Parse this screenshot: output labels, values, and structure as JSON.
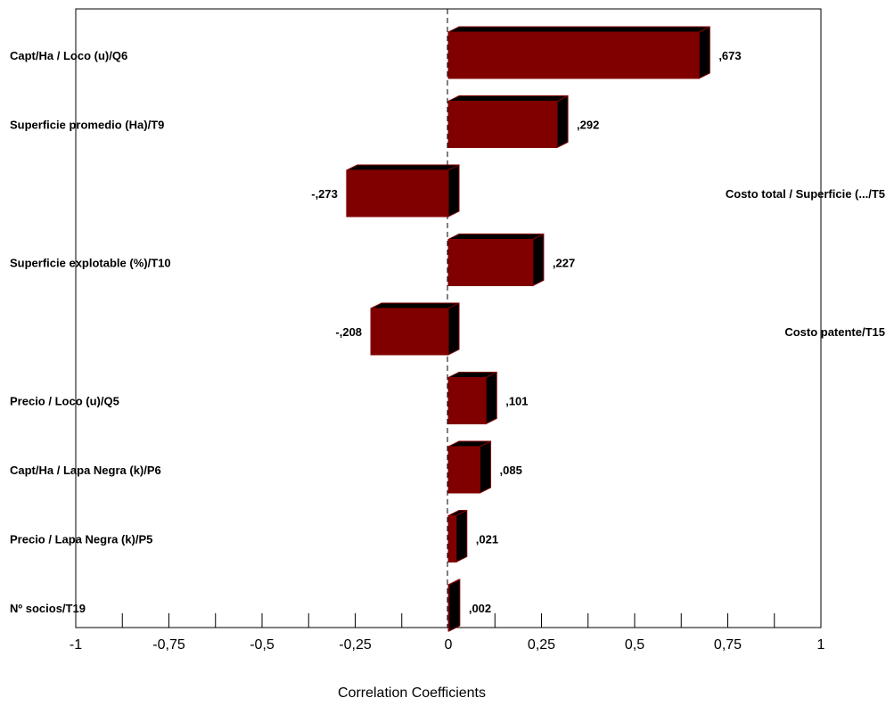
{
  "chart_data": {
    "type": "bar",
    "orientation": "horizontal",
    "style": "3d",
    "title": "",
    "xlabel": "Correlation Coefficients",
    "ylabel": "",
    "xlim": [
      -1,
      1
    ],
    "x_ticks": [
      -1,
      -0.75,
      -0.5,
      -0.25,
      0,
      0.25,
      0.5,
      0.75,
      1
    ],
    "x_tick_labels": [
      "-1",
      "-0,75",
      "-0,5",
      "-0,25",
      "0",
      "0,25",
      "0,5",
      "0,75",
      "1"
    ],
    "grid": false,
    "legend": "none",
    "bar_color": "#800000",
    "bar_side_color": "#000000",
    "categories": [
      "Capt/Ha / Loco (u)/Q6",
      "Superficie promedio (Ha)/T9",
      "Costo total / Superficie (.../T5",
      "Superficie explotable (%)/T10",
      "Costo patente/T15",
      "Precio / Loco (u)/Q5",
      "Capt/Ha / Lapa Negra (k)/P6",
      "Precio / Lapa Negra (k)/P5",
      "Nº socios/T19"
    ],
    "values": [
      0.673,
      0.292,
      -0.273,
      0.227,
      -0.208,
      0.101,
      0.085,
      0.021,
      0.002
    ],
    "value_labels": [
      ",673",
      ",292",
      "-,273",
      ",227",
      "-,208",
      ",101",
      ",085",
      ",021",
      ",002"
    ]
  }
}
